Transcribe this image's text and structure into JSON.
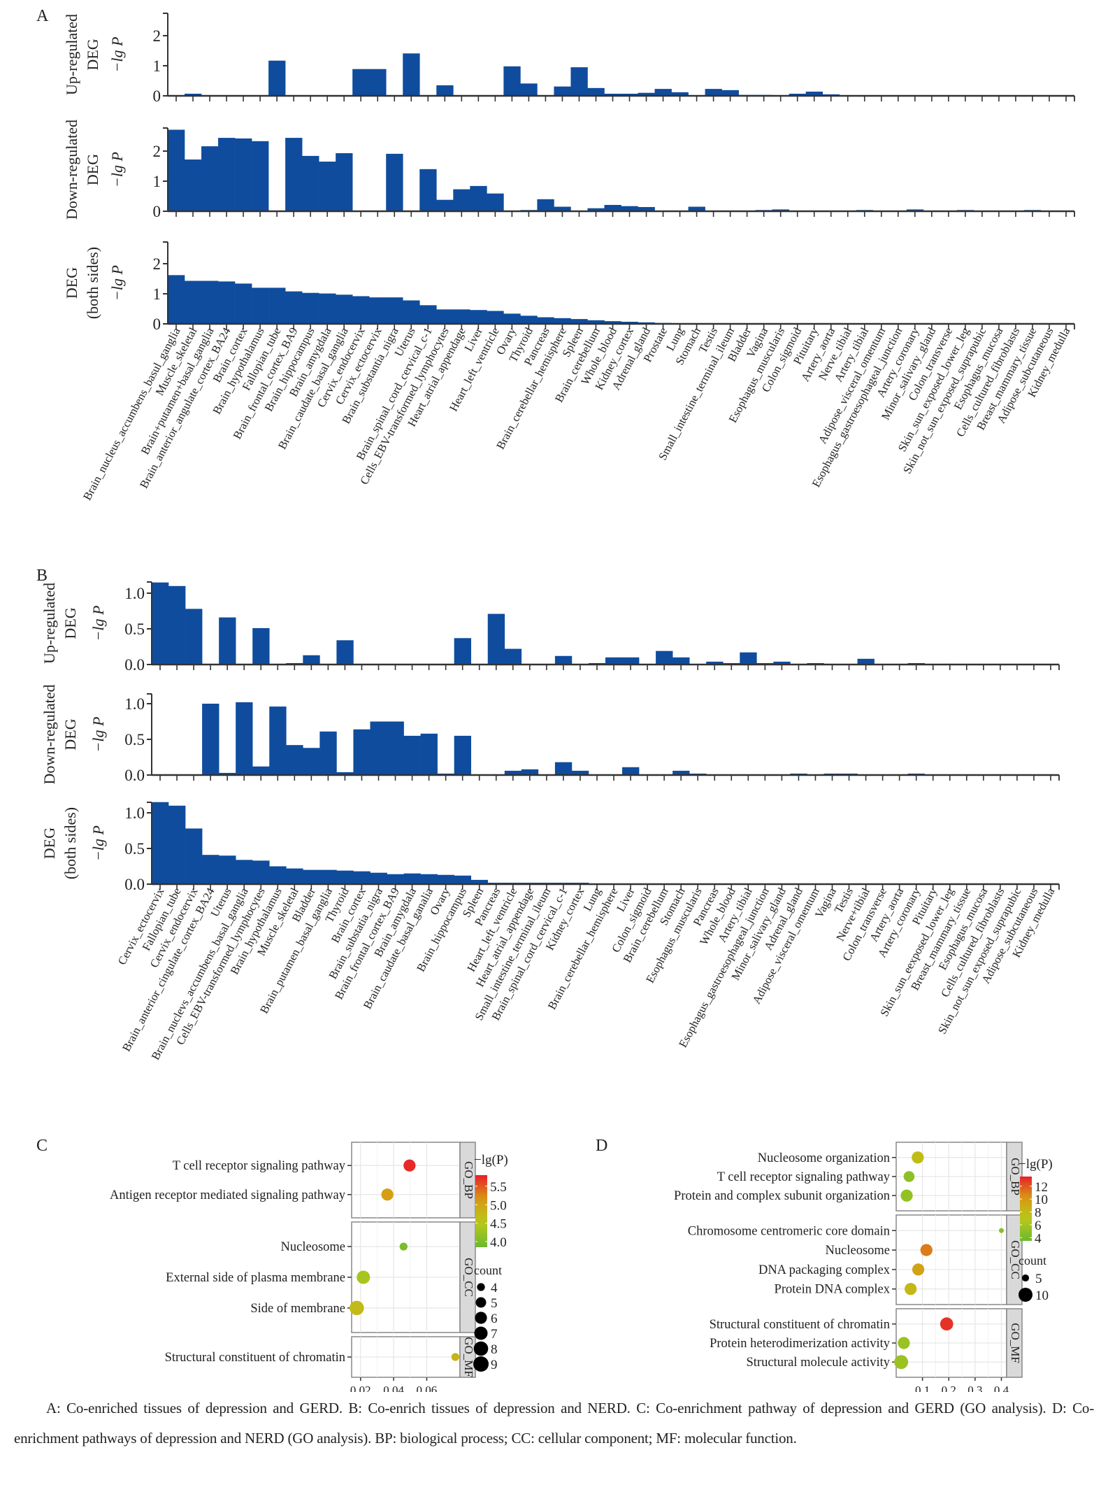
{
  "figure": {
    "caption": "A: Co-enriched tissues of depression and GERD. B: Co-enrich tissues of depression and NERD. C: Co-enrichment pathway of depression and GERD (GO analysis). D: Co-enrichment pathways of depression and NERD (GO analysis). BP: biological process; CC: cellular component; MF: molecular function."
  },
  "colors": {
    "bar": "#0f4c9e",
    "axis": "#333333",
    "grid": "#e6e6e6",
    "strip": "#d9d9d9",
    "scale_low": "#6ab92f",
    "scale_mid": "#b8c81a",
    "scale_mid2": "#d79a12",
    "scale_high": "#e8202a"
  },
  "chart_data": [
    {
      "id": "A",
      "panel_label": "A",
      "type": "bar",
      "ylabel": "−lg P",
      "ylim": [
        0,
        2.75
      ],
      "yticks": [
        0,
        1,
        2
      ],
      "ytick_labels": [
        "0",
        "1",
        "2"
      ],
      "categories": [
        "Brain_nucleus_accumbens_basul_ganglia",
        "Muscle_skeletal",
        "Brain+putamen+basal_ganglia",
        "Brain_anterior_angulate_cortex_BA24",
        "Brain_cortex",
        "Brain_hypothalamus",
        "Fallopian_tube",
        "Brain_frontal_cortex_BA9",
        "Brain_hippocampus",
        "Brain_amygdala",
        "Brain_caudate_basal_ganglia",
        "Cervix_endocervix",
        "Cervix_ectocervix",
        "Brain_substantia_nigra",
        "Uterus",
        "Brain_spinal_cord_cervical_c-1",
        "Cells_EBV-transformed_lymphocytes",
        "Heart_atrial_appendage",
        "Liver",
        "Heart_left_ventricle",
        "Ovary",
        "Thyroid",
        "Pancreas",
        "Brain_cerebellar_hemisphere",
        "Spleen",
        "Brain_cerebellum",
        "Whole_blood",
        "Kidney_cortex",
        "Adrenal_gland",
        "Prostate",
        "Lung",
        "Stomach",
        "Testis",
        "Small_intestine_terminal_ileum",
        "Bladder",
        "Vagina",
        "Esophagus_muscularis",
        "Colon_sigmoid",
        "Pituitary",
        "Artery_aorta",
        "Nerve_tibial",
        "Artery_tibial",
        "Adipose_visceral_omentum",
        "Esophagus_gastroesophageal_junction",
        "Artery_coronary",
        "Minor_salivary_gland",
        "Colon_transverse",
        "Skin_sun_exposed_lower_leg",
        "Skin_not_sun_exposed_suprapubic",
        "Esophagus_mucosa",
        "Cells_cultured_fibroblasts",
        "Breast_mammary_tissue",
        "Adipose_subcutaneous",
        "Kidney_medulla"
      ],
      "series": [
        {
          "name": "Up-regulated DEG",
          "label_lines": [
            "Up-regulated",
            "DEG"
          ],
          "values": [
            0,
            0.07,
            0,
            0,
            0,
            0,
            1.17,
            0,
            0,
            0,
            0,
            0.89,
            0.89,
            0,
            1.41,
            0,
            0.35,
            0,
            0,
            0,
            0.98,
            0.41,
            0,
            0.31,
            0.95,
            0.26,
            0.07,
            0.07,
            0.1,
            0.23,
            0.12,
            0,
            0.23,
            0.19,
            0.03,
            0.03,
            0.02,
            0.07,
            0.14,
            0.05,
            0.02,
            0,
            0,
            0,
            0,
            0,
            0.02,
            0,
            0,
            0,
            0,
            0,
            0,
            0
          ]
        },
        {
          "name": "Down-regulated DEG",
          "label_lines": [
            "Down-regulated",
            "DEG"
          ],
          "values": [
            2.71,
            1.72,
            2.16,
            2.44,
            2.42,
            2.33,
            0,
            2.44,
            1.84,
            1.65,
            1.93,
            0,
            0,
            1.91,
            0,
            1.4,
            0.38,
            0.73,
            0.84,
            0.59,
            0,
            0.04,
            0.4,
            0.15,
            0,
            0.1,
            0.21,
            0.17,
            0.14,
            0,
            0,
            0.15,
            0,
            0,
            0,
            0.04,
            0.06,
            0,
            0,
            0,
            0,
            0.04,
            0,
            0,
            0.06,
            0,
            0,
            0.04,
            0,
            0,
            0.02,
            0.04,
            0,
            0
          ]
        },
        {
          "name": "DEG (both sides)",
          "label_lines": [
            "DEG",
            "(both sides)"
          ],
          "values": [
            1.62,
            1.43,
            1.43,
            1.41,
            1.34,
            1.2,
            1.2,
            1.08,
            1.03,
            1.01,
            0.97,
            0.92,
            0.88,
            0.88,
            0.78,
            0.62,
            0.48,
            0.48,
            0.46,
            0.43,
            0.34,
            0.27,
            0.22,
            0.19,
            0.16,
            0.12,
            0.09,
            0.07,
            0.05,
            0.03,
            0.02,
            0.02,
            0.02,
            0.01,
            0.01,
            0.01,
            0.01,
            0.01,
            0.01,
            0,
            0,
            0,
            0,
            0,
            0,
            0,
            0,
            0,
            0,
            0,
            0,
            0,
            0,
            0
          ]
        }
      ]
    },
    {
      "id": "B",
      "panel_label": "B",
      "type": "bar",
      "ylabel": "−lg P",
      "ylim": [
        0,
        1.15
      ],
      "yticks": [
        0,
        0.5,
        1.0
      ],
      "ytick_labels": [
        "0.0",
        "0.5",
        "1.0"
      ],
      "categories": [
        "Cervix_ectocervix",
        "Fallopian_tube",
        "Cervix_endocervix",
        "Brain_anterior_cingulate_cortex_BA24",
        "Uterus",
        "Brain_nuclevs_accumbens_basal_ganglia",
        "Cells_EBV-transformed_lymphocytes",
        "Brain_hypothalamus",
        "Muscle_skeletal",
        "Bladder",
        "Brain_putamen_basal_ganglia",
        "Thyroid",
        "Brain_cortex",
        "Brain_substatia_nigra",
        "Brain_frontal_cortex_BA9",
        "Brain_amygdala",
        "Brain_caudate_basal_ganalia",
        "Ovary",
        "Brain_hippocampus",
        "Spleen",
        "Pancreas",
        "Heart_left_ventricle",
        "Heart_atrial_appendage",
        "Small_intestine_terminal_ileum",
        "Brain_spinal_cord_cervical_c-1",
        "Kidney_cortex",
        "Lung",
        "Brain_cerebellar_hemisphere",
        "Liver",
        "Colon_sigmoid",
        "Brain_cerebellum",
        "Stomach",
        "Esophagus_muscularis",
        "Pancreas",
        "Whole_blood",
        "Artery_tibial",
        "Esophagus_gastroesophageal_junction",
        "Minor_salivary_gland",
        "Adrenal_gland",
        "Adipose_visceral_omentum",
        "Vagina",
        "Testis",
        "Nerve+tibial",
        "Colon_transverse",
        "Artery_aorta",
        "Artery_coronary",
        "Pituitary",
        "Skin_sun_eexposed_lower_leg",
        "Breast_mammary_tissue",
        "Esophagus_mucosa",
        "Cells_cultured_fibroblasts",
        "Skin_not_sun_exposed_suprapubic",
        "Adipose_subcutaneous",
        "Kidney_medulla"
      ],
      "series": [
        {
          "name": "Up-regulated DEG",
          "label_lines": [
            "Up-regulated",
            "DEG"
          ],
          "values": [
            1.15,
            1.1,
            0.78,
            0,
            0.66,
            0,
            0.51,
            0,
            0.02,
            0.13,
            0,
            0.34,
            0,
            0,
            0,
            0,
            0,
            0,
            0.37,
            0,
            0.71,
            0.22,
            0,
            0,
            0.12,
            0,
            0.02,
            0.1,
            0.1,
            0,
            0.19,
            0.1,
            0,
            0.04,
            0.02,
            0.17,
            0.02,
            0.04,
            0.01,
            0.02,
            0,
            0,
            0.08,
            0,
            0,
            0.02,
            0,
            0.01,
            0,
            0,
            0,
            0,
            0,
            0
          ]
        },
        {
          "name": "Down-regulated DEG",
          "label_lines": [
            "Down-regulated",
            "DEG"
          ],
          "values": [
            0,
            0,
            0,
            1.0,
            0.03,
            1.02,
            0.12,
            0.96,
            0.42,
            0.38,
            0.61,
            0.04,
            0.64,
            0.75,
            0.75,
            0.55,
            0.58,
            0.02,
            0.55,
            0,
            0,
            0.06,
            0.08,
            0,
            0.18,
            0.06,
            0,
            0.01,
            0.11,
            0,
            0.01,
            0.06,
            0.02,
            0.01,
            0,
            0.01,
            0.01,
            0,
            0.02,
            0.01,
            0.02,
            0.02,
            0.01,
            0,
            0,
            0.02,
            0,
            0.01,
            0.01,
            0,
            0.01,
            0,
            0,
            0
          ]
        },
        {
          "name": "DEG (both sides)",
          "label_lines": [
            "DEG",
            "(both sides)"
          ],
          "values": [
            1.15,
            1.1,
            0.78,
            0.41,
            0.4,
            0.34,
            0.33,
            0.25,
            0.22,
            0.2,
            0.2,
            0.19,
            0.18,
            0.16,
            0.14,
            0.15,
            0.14,
            0.13,
            0.12,
            0.06,
            0.02,
            0.02,
            0.02,
            0.02,
            0.02,
            0.02,
            0.01,
            0.01,
            0.01,
            0.01,
            0.01,
            0.01,
            0.01,
            0.01,
            0.01,
            0,
            0,
            0,
            0,
            0,
            0,
            0,
            0,
            0,
            0,
            0,
            0,
            0,
            0,
            0,
            0,
            0,
            0,
            0
          ]
        }
      ]
    },
    {
      "id": "C",
      "panel_label": "C",
      "type": "scatter",
      "xlabel": "Gene ratio",
      "xlim": [
        0.0146,
        0.0801
      ],
      "xticks": [
        0.02,
        0.04,
        0.06
      ],
      "xtick_labels": [
        "0.02",
        "0.04",
        "0.06"
      ],
      "color_legend": {
        "title": "−lg(P)",
        "range": [
          3.85,
          5.8
        ],
        "ticks": [
          4.0,
          4.5,
          5.0,
          5.5
        ],
        "tick_labels": [
          "4.0",
          "4.5",
          "5.0",
          "5.5"
        ]
      },
      "size_legend": {
        "title": "count",
        "values": [
          4,
          5,
          6,
          7,
          8,
          9
        ],
        "labels": [
          "4",
          "5",
          "6",
          "7",
          "8",
          "9"
        ]
      },
      "facets": [
        {
          "strip": "GO_BP",
          "points": [
            {
              "term": "T cell receptor signaling pathway",
              "gene_ratio": 0.0496,
              "neg_log_p": 5.75,
              "count": 6
            },
            {
              "term": "Antigen receptor mediated signaling pathway",
              "gene_ratio": 0.0362,
              "neg_log_p": 5.1,
              "count": 6
            }
          ]
        },
        {
          "strip": "GO_CC",
          "points": [
            {
              "term": "Nucleosome",
              "gene_ratio": 0.046,
              "neg_log_p": 4.0,
              "count": 4
            },
            {
              "term": "External side of plasma membrane",
              "gene_ratio": 0.0217,
              "neg_log_p": 4.35,
              "count": 7
            },
            {
              "term": "Side of membrane",
              "gene_ratio": 0.0177,
              "neg_log_p": 4.7,
              "count": 8
            }
          ]
        },
        {
          "strip": "GO_MF",
          "points": [
            {
              "term": "Structural constituent of chromatin",
              "gene_ratio": 0.0773,
              "neg_log_p": 4.8,
              "count": 4
            }
          ]
        }
      ]
    },
    {
      "id": "D",
      "panel_label": "D",
      "type": "scatter",
      "xlabel": "Gene ratio",
      "xlim": [
        0.0,
        0.42
      ],
      "xticks": [
        0.1,
        0.2,
        0.3,
        0.4
      ],
      "xtick_labels": [
        "0.1",
        "0.2",
        "0.3",
        "0.4"
      ],
      "color_legend": {
        "title": "−lg(P)",
        "range": [
          3.5,
          13.5
        ],
        "ticks": [
          4,
          6,
          8,
          10,
          12
        ],
        "tick_labels": [
          "4",
          "6",
          "8",
          "10",
          "12"
        ]
      },
      "size_legend": {
        "title": "count",
        "values": [
          5,
          10
        ],
        "labels": [
          "5",
          "10"
        ]
      },
      "facets": [
        {
          "strip": "GO_BP",
          "points": [
            {
              "term": "Nucleosome organization",
              "gene_ratio": 0.082,
              "neg_log_p": 7.8,
              "count": 8
            },
            {
              "term": "T cell receptor signaling pathway",
              "gene_ratio": 0.049,
              "neg_log_p": 5.0,
              "count": 7
            },
            {
              "term": "Protein and complex subunit organization",
              "gene_ratio": 0.04,
              "neg_log_p": 5.2,
              "count": 8
            }
          ]
        },
        {
          "strip": "GO_CC",
          "points": [
            {
              "term": "Chromosome centromeric core domain",
              "gene_ratio": 0.4,
              "neg_log_p": 4.8,
              "count": 2
            },
            {
              "term": "Nucleosome",
              "gene_ratio": 0.115,
              "neg_log_p": 11.0,
              "count": 8
            },
            {
              "term": "DNA packaging complex",
              "gene_ratio": 0.084,
              "neg_log_p": 9.5,
              "count": 8
            },
            {
              "term": "Protein DNA complex",
              "gene_ratio": 0.055,
              "neg_log_p": 8.0,
              "count": 8
            }
          ]
        },
        {
          "strip": "GO_MF",
          "points": [
            {
              "term": "Structural constituent of chromatin",
              "gene_ratio": 0.192,
              "neg_log_p": 13.0,
              "count": 9
            },
            {
              "term": "Protein heterodimerization activity",
              "gene_ratio": 0.029,
              "neg_log_p": 5.5,
              "count": 8
            },
            {
              "term": "Structural molecule activity",
              "gene_ratio": 0.019,
              "neg_log_p": 5.6,
              "count": 10
            }
          ]
        }
      ]
    }
  ]
}
